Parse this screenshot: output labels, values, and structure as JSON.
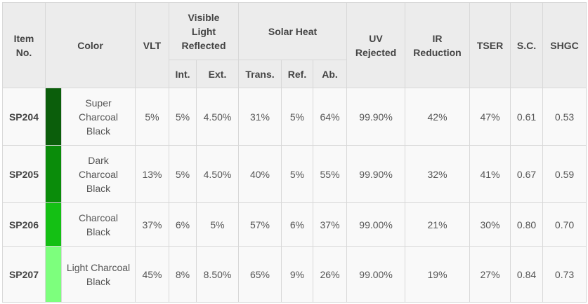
{
  "table": {
    "header": {
      "item_no": [
        "Item",
        "No."
      ],
      "color": "Color",
      "vlt": "VLT",
      "visible_light_reflected": [
        "Visible",
        "Light",
        "Reflected"
      ],
      "solar_heat": "Solar Heat",
      "uv_rejected": [
        "UV",
        "Rejected"
      ],
      "ir_reduction": [
        "IR",
        "Reduction"
      ],
      "tser": "TSER",
      "sc": "S.C.",
      "shgc": "SHGC",
      "sub": [
        "Int.",
        "Ext.",
        "Trans.",
        "Ref.",
        "Ab."
      ]
    },
    "rows": [
      {
        "item": "SP204",
        "swatch": "#0b5e0b",
        "color": [
          "Super",
          "Charcoal",
          "Black"
        ],
        "cells": [
          "5%",
          "5%",
          "4.50%",
          "31%",
          "5%",
          "64%",
          "99.90%",
          "42%",
          "47%",
          "0.61",
          "0.53"
        ]
      },
      {
        "item": "SP205",
        "swatch": "#0a8c0a",
        "color": [
          "Dark",
          "Charcoal",
          "Black"
        ],
        "cells": [
          "13%",
          "5%",
          "4.50%",
          "40%",
          "5%",
          "55%",
          "99.90%",
          "32%",
          "41%",
          "0.67",
          "0.59"
        ]
      },
      {
        "item": "SP206",
        "swatch": "#14c014",
        "color": [
          "Charcoal",
          "Black"
        ],
        "cells": [
          "37%",
          "6%",
          "5%",
          "57%",
          "6%",
          "37%",
          "99.00%",
          "21%",
          "30%",
          "0.80",
          "0.70"
        ]
      },
      {
        "item": "SP207",
        "swatch": "#7dff7d",
        "color": [
          "Light Charcoal",
          "Black"
        ],
        "cells": [
          "45%",
          "8%",
          "8.50%",
          "65%",
          "9%",
          "26%",
          "99.00%",
          "19%",
          "27%",
          "0.84",
          "0.73"
        ]
      }
    ]
  }
}
